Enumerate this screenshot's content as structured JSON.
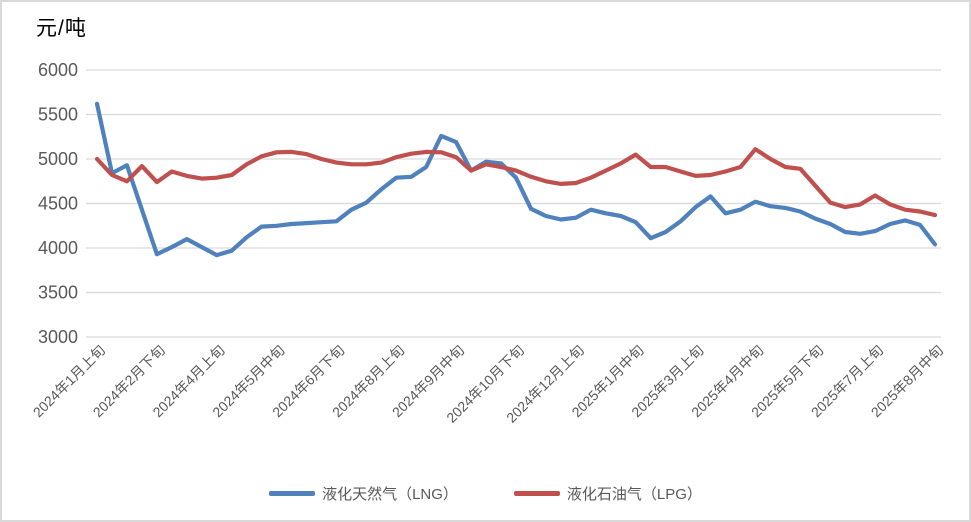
{
  "page": {
    "background": "#ffffff",
    "border_color": "#d9d9d9"
  },
  "chart_data": {
    "type": "line",
    "title": "元/吨",
    "ylabel": "元/吨",
    "xlabel": "",
    "ylim": [
      3000,
      6000
    ],
    "yticks": [
      6000,
      5500,
      5000,
      4500,
      4000,
      3500,
      3000
    ],
    "grid": true,
    "grid_color": "#d9d9d9",
    "axis_text_color": "#595959",
    "legend_position": "bottom",
    "x_label_interval": 4,
    "x_labels_shown": [
      "2024年1月上旬",
      "2024年2月下旬",
      "2024年4月上旬",
      "2024年5月中旬",
      "2024年6月下旬",
      "2024年8月上旬",
      "2024年9月中旬",
      "2024年10月下旬",
      "2024年12月上旬",
      "2025年1月中旬",
      "2025年3月上旬",
      "2025年4月中旬",
      "2025年5月下旬",
      "2025年7月上旬",
      "2025年8月中旬"
    ],
    "categories": [
      "2024年1月上旬",
      "2024年1月中旬",
      "2024年1月下旬",
      "2024年2月上旬",
      "2024年2月下旬",
      "2024年3月上旬",
      "2024年3月中旬",
      "2024年3月下旬",
      "2024年4月上旬",
      "2024年4月中旬",
      "2024年4月下旬",
      "2024年5月上旬",
      "2024年5月中旬",
      "2024年5月下旬",
      "2024年6月上旬",
      "2024年6月中旬",
      "2024年6月下旬",
      "2024年7月上旬",
      "2024年7月中旬",
      "2024年7月下旬",
      "2024年8月上旬",
      "2024年8月中旬",
      "2024年8月下旬",
      "2024年9月上旬",
      "2024年9月中旬",
      "2024年9月下旬",
      "2024年10月上旬",
      "2024年10月中旬",
      "2024年10月下旬",
      "2024年11月上旬",
      "2024年11月中旬",
      "2024年11月下旬",
      "2024年12月上旬",
      "2024年12月中旬",
      "2024年12月下旬",
      "2025年1月上旬",
      "2025年1月中旬",
      "2025年1月下旬",
      "2025年2月中旬",
      "2025年2月下旬",
      "2025年3月上旬",
      "2025年3月中旬",
      "2025年3月下旬",
      "2025年4月上旬",
      "2025年4月中旬",
      "2025年4月下旬",
      "2025年5月上旬",
      "2025年5月中旬",
      "2025年5月下旬",
      "2025年6月上旬",
      "2025年6月中旬",
      "2025年6月下旬",
      "2025年7月上旬",
      "2025年7月中旬",
      "2025年7月下旬",
      "2025年8月上旬",
      "2025年8月中旬"
    ],
    "series": [
      {
        "name": "液化天然气（LNG）",
        "color": "#4F81BD",
        "values": [
          5620,
          4840,
          4930,
          4430,
          3930,
          4010,
          4100,
          4010,
          3920,
          3970,
          4120,
          4240,
          4250,
          4270,
          4280,
          4290,
          4300,
          4430,
          4510,
          4660,
          4790,
          4800,
          4910,
          5260,
          5190,
          4870,
          4970,
          4950,
          4790,
          4440,
          4360,
          4320,
          4340,
          4430,
          4390,
          4360,
          4290,
          4110,
          4180,
          4300,
          4460,
          4580,
          4390,
          4430,
          4520,
          4470,
          4450,
          4410,
          4330,
          4270,
          4180,
          4160,
          4190,
          4270,
          4310,
          4260,
          4040
        ]
      },
      {
        "name": "液化石油气（LPG）",
        "color": "#C0504D",
        "values": [
          5000,
          4820,
          4750,
          4920,
          4740,
          4860,
          4810,
          4780,
          4790,
          4820,
          4940,
          5030,
          5075,
          5080,
          5055,
          5000,
          4960,
          4940,
          4940,
          4960,
          5020,
          5060,
          5080,
          5075,
          5020,
          4870,
          4940,
          4910,
          4870,
          4800,
          4750,
          4720,
          4730,
          4790,
          4870,
          4950,
          5050,
          4910,
          4910,
          4860,
          4810,
          4820,
          4860,
          4910,
          5110,
          5000,
          4910,
          4890,
          4700,
          4510,
          4460,
          4490,
          4590,
          4490,
          4430,
          4410,
          4370
        ]
      }
    ]
  }
}
